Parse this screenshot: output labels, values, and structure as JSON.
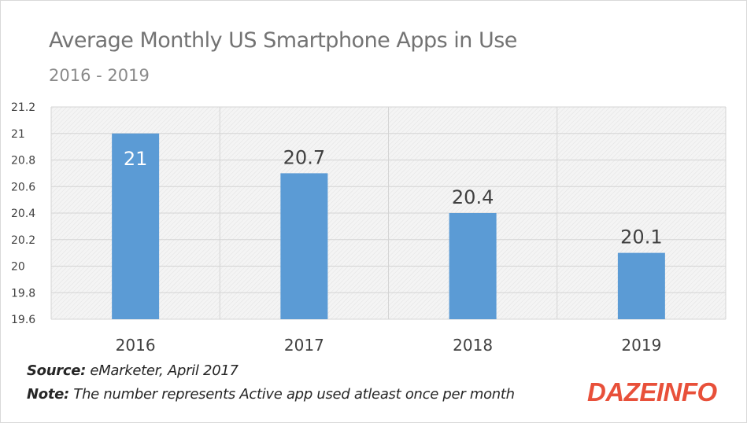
{
  "chart_data": {
    "type": "bar",
    "title": "Average Monthly US Smartphone Apps in Use",
    "subtitle": "2016 - 2019",
    "categories": [
      "2016",
      "2017",
      "2018",
      "2019"
    ],
    "values": [
      21,
      20.7,
      20.4,
      20.1
    ],
    "data_labels": [
      "21",
      "20.7",
      "20.4",
      "20.1"
    ],
    "y_ticks": [
      "21.2",
      "21",
      "20.8",
      "20.6",
      "20.4",
      "20.2",
      "20",
      "19.8",
      "19.6"
    ],
    "ylim": [
      19.6,
      21.2
    ],
    "grid": true,
    "bar_color": "#5b9bd5",
    "label_inside_color": "#ffffff",
    "label_outside_color": "#404040"
  },
  "footer": {
    "source_label": "Source:",
    "source_text": " eMarketer, April 2017",
    "note_label": "Note:",
    "note_text": " The number represents Active app used atleast once per month"
  },
  "logo": {
    "text": "DAZEINFO",
    "color": "#e8503a"
  }
}
